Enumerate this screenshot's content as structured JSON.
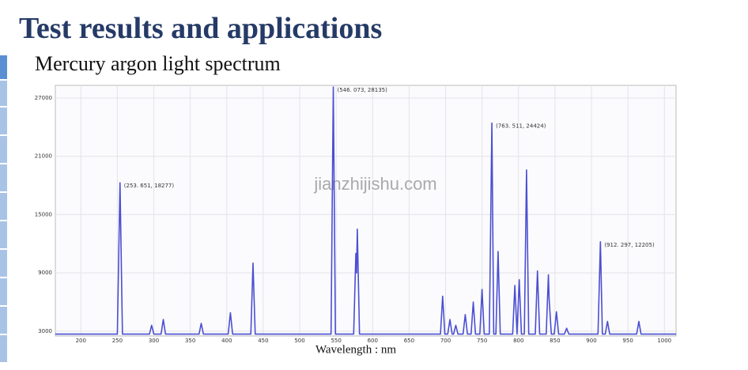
{
  "header": {
    "title": "Test results and applications",
    "subtitle": "Mercury argon light spectrum"
  },
  "chart_data": {
    "type": "line",
    "xlabel": "Wavelength : nm",
    "watermark": "jianzhijishu.com",
    "xlim": [
      165,
      1016
    ],
    "ylim": [
      2500,
      28300
    ],
    "xticks": [
      200,
      250,
      300,
      350,
      400,
      450,
      500,
      550,
      600,
      650,
      700,
      750,
      800,
      850,
      900,
      950,
      1000
    ],
    "yticks": [
      3000,
      9000,
      15000,
      21000,
      27000
    ],
    "grid": true,
    "series": [
      {
        "color": "#4b4fd2",
        "x": [
          165,
          250,
          253.651,
          257,
          294,
          297,
          300,
          310,
          313,
          316,
          362,
          365,
          368,
          402,
          405,
          408,
          433,
          436,
          439,
          543,
          546.073,
          549,
          574,
          577,
          578,
          579,
          582,
          693,
          696,
          699,
          703,
          706,
          709,
          711,
          714,
          717,
          724,
          727,
          730,
          735,
          738,
          741,
          747,
          750,
          753,
          760,
          763.511,
          766,
          769,
          772,
          775,
          792,
          795,
          798,
          801,
          804,
          808,
          811,
          814,
          823,
          826,
          829,
          838,
          841,
          842,
          845,
          849,
          852,
          855,
          863,
          866,
          869,
          909,
          912.297,
          915,
          919,
          922,
          925,
          962,
          965,
          968,
          1016
        ],
        "values": [
          2700,
          2700,
          18277,
          2700,
          2700,
          3600,
          2700,
          2700,
          4200,
          2700,
          2700,
          3800,
          2700,
          2700,
          4900,
          2700,
          2700,
          10000,
          2700,
          2700,
          28135,
          2700,
          2700,
          11000,
          9000,
          13500,
          2700,
          2700,
          6600,
          2700,
          2700,
          4200,
          2700,
          2700,
          3600,
          2700,
          2700,
          4700,
          2700,
          2700,
          6000,
          2700,
          2700,
          7300,
          2700,
          2700,
          24424,
          2700,
          2700,
          11200,
          2700,
          2700,
          7700,
          2700,
          8300,
          2700,
          2700,
          19600,
          2700,
          2700,
          9200,
          2700,
          2700,
          8800,
          6300,
          2700,
          2700,
          5000,
          2700,
          2700,
          3300,
          2700,
          2700,
          12205,
          2700,
          2700,
          4000,
          2700,
          2700,
          4000,
          2700,
          2700
        ]
      }
    ],
    "annotations": [
      {
        "text": "(253. 651, 18277)",
        "x": 253.651,
        "y": 18277
      },
      {
        "text": "(546. 073, 28135)",
        "x": 546.073,
        "y": 28135
      },
      {
        "text": "(763. 511, 24424)",
        "x": 763.511,
        "y": 24424
      },
      {
        "text": "(912. 297, 12205)",
        "x": 912.297,
        "y": 12205
      }
    ]
  }
}
